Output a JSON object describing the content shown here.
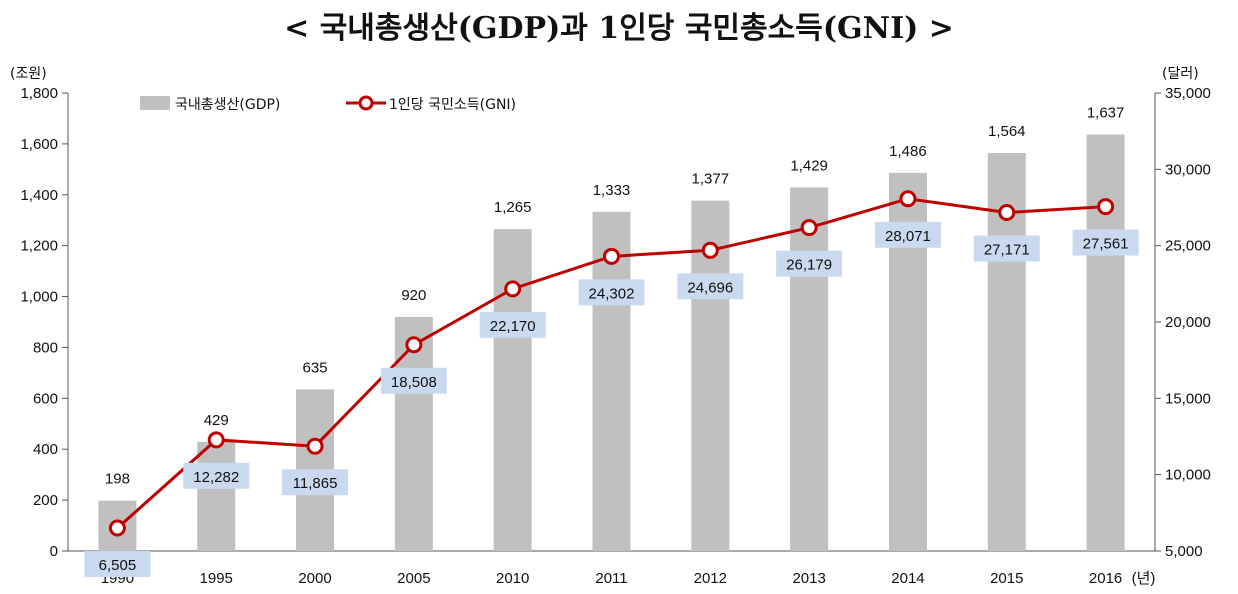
{
  "title": "< 국내총생산(GDP)과 1인당 국민총소득(GNI) >",
  "colors": {
    "bar": "#c0c0c0",
    "line": "#c00000",
    "marker_fill": "#ffffff",
    "label_box": "#c9daf0",
    "axis": "#555555"
  },
  "chart_data": {
    "type": "bar",
    "title": "< 국내총생산(GDP)과 1인당 국민총소득(GNI) >",
    "categories": [
      "1990",
      "1995",
      "2000",
      "2005",
      "2010",
      "2011",
      "2012",
      "2013",
      "2014",
      "2015",
      "2016"
    ],
    "x_unit": "(년)",
    "y_left_unit": "(조원)",
    "y_right_unit": "(달러)",
    "y_left_lim": [
      0,
      1800
    ],
    "y_left_ticks": [
      0,
      200,
      400,
      600,
      800,
      1000,
      1200,
      1400,
      1600,
      1800
    ],
    "y_left_tick_labels": [
      "0",
      "200",
      "400",
      "600",
      "800",
      "1,000",
      "1,200",
      "1,400",
      "1,600",
      "1,800"
    ],
    "y_right_lim": [
      5000,
      35000
    ],
    "y_right_ticks": [
      5000,
      10000,
      15000,
      20000,
      25000,
      30000,
      35000
    ],
    "y_right_tick_labels": [
      "5,000",
      "10,000",
      "15,000",
      "20,000",
      "25,000",
      "30,000",
      "35,000"
    ],
    "legend_position": "top-left",
    "grid": false,
    "series": [
      {
        "name": "국내총생산(GDP)",
        "type": "bar",
        "axis": "left",
        "values": [
          198,
          429,
          635,
          920,
          1265,
          1333,
          1377,
          1429,
          1486,
          1564,
          1637
        ],
        "labels": [
          "198",
          "429",
          "635",
          "920",
          "1,265",
          "1,333",
          "1,377",
          "1,429",
          "1,486",
          "1,564",
          "1,637"
        ]
      },
      {
        "name": "1인당 국민소득(GNI)",
        "type": "line",
        "axis": "right",
        "values": [
          6505,
          12282,
          11865,
          18508,
          22170,
          24302,
          24696,
          26179,
          28071,
          27171,
          27561
        ],
        "labels": [
          "6,505",
          "12,282",
          "11,865",
          "18,508",
          "22,170",
          "24,302",
          "24,696",
          "26,179",
          "28,071",
          "27,171",
          "27,561"
        ]
      }
    ]
  }
}
